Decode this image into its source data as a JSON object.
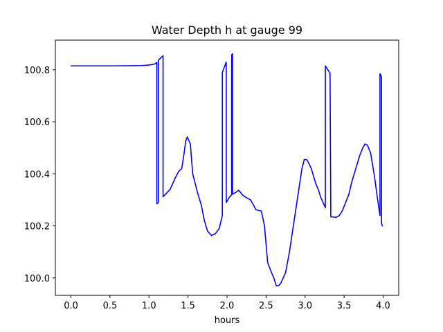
{
  "chart_data": {
    "type": "line",
    "title": "Water Depth h at gauge 99",
    "xlabel": "hours",
    "ylabel": "",
    "xlim": [
      -0.2,
      4.2
    ],
    "ylim": [
      99.933,
      100.914
    ],
    "xticks": [
      0.0,
      0.5,
      1.0,
      1.5,
      2.0,
      2.5,
      3.0,
      3.5,
      4.0
    ],
    "xtick_labels": [
      "0.0",
      "0.5",
      "1.0",
      "1.5",
      "2.0",
      "2.5",
      "3.0",
      "3.5",
      "4.0"
    ],
    "yticks": [
      100.0,
      100.2,
      100.4,
      100.6,
      100.8
    ],
    "ytick_labels": [
      "100.0",
      "100.2",
      "100.4",
      "100.6",
      "100.8"
    ],
    "grid": false,
    "series": [
      {
        "color": "#0000ff",
        "x": [
          0.0,
          0.5,
          0.9,
          1.0,
          1.07,
          1.1,
          1.1,
          1.12,
          1.12,
          1.13,
          1.18,
          1.18,
          1.2,
          1.27,
          1.33,
          1.38,
          1.42,
          1.45,
          1.47,
          1.49,
          1.53,
          1.56,
          1.62,
          1.67,
          1.71,
          1.75,
          1.8,
          1.85,
          1.9,
          1.94,
          1.94,
          1.99,
          1.99,
          2.03,
          2.06,
          2.06,
          2.07,
          2.07,
          2.12,
          2.15,
          2.2,
          2.24,
          2.3,
          2.34,
          2.37,
          2.4,
          2.44,
          2.48,
          2.52,
          2.57,
          2.6,
          2.63,
          2.66,
          2.69,
          2.72,
          2.75,
          2.8,
          2.86,
          2.92,
          2.96,
          2.99,
          3.02,
          3.05,
          3.08,
          3.11,
          3.14,
          3.17,
          3.2,
          3.23,
          3.26,
          3.26,
          3.32,
          3.33,
          3.4,
          3.44,
          3.48,
          3.52,
          3.56,
          3.6,
          3.65,
          3.7,
          3.74,
          3.77,
          3.8,
          3.84,
          3.89,
          3.93,
          3.96,
          3.96,
          3.97,
          3.98,
          3.98,
          3.99
        ],
        "y": [
          100.815,
          100.815,
          100.816,
          100.818,
          100.822,
          100.828,
          100.285,
          100.29,
          100.836,
          100.84,
          100.854,
          100.312,
          100.318,
          100.34,
          100.38,
          100.41,
          100.42,
          100.48,
          100.525,
          100.542,
          100.515,
          100.4,
          100.33,
          100.28,
          100.22,
          100.18,
          100.163,
          100.17,
          100.19,
          100.24,
          100.79,
          100.83,
          100.29,
          100.31,
          100.32,
          100.858,
          100.862,
          100.322,
          100.33,
          100.337,
          100.318,
          100.31,
          100.3,
          100.28,
          100.262,
          100.26,
          100.257,
          100.2,
          100.06,
          100.02,
          100.0,
          99.97,
          99.97,
          99.98,
          100.0,
          100.02,
          100.1,
          100.22,
          100.34,
          100.42,
          100.455,
          100.455,
          100.44,
          100.42,
          100.39,
          100.36,
          100.34,
          100.31,
          100.29,
          100.27,
          100.815,
          100.787,
          100.235,
          100.233,
          100.24,
          100.26,
          100.29,
          100.32,
          100.37,
          100.42,
          100.47,
          100.5,
          100.515,
          100.51,
          100.48,
          100.39,
          100.3,
          100.24,
          100.785,
          100.78,
          100.77,
          100.21,
          100.2
        ]
      }
    ]
  }
}
